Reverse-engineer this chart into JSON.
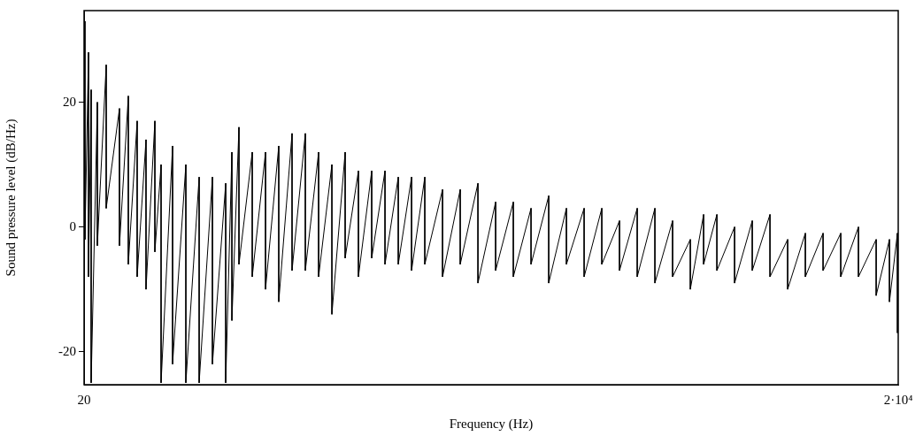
{
  "chart_data": {
    "type": "line",
    "xlabel": "Frequency (Hz)",
    "ylabel": "Sound pressure level (dB/Hz)",
    "xlim": [
      20,
      20000
    ],
    "xticks": [
      20,
      {
        "value": 20000,
        "label": "2·10⁴"
      }
    ],
    "ylim": [
      -25.3,
      34.7
    ],
    "yticks": [
      -20,
      0,
      20
    ],
    "grid": false,
    "legend": false,
    "marker": "none",
    "line_style": "solid",
    "series": [
      {
        "color": "#000000",
        "x": [
          42,
          42,
          129,
          129,
          194,
          194,
          346,
          346,
          563,
          563,
          889,
          889,
          1106,
          1106,
          1323,
          1323,
          1540,
          1540,
          1758,
          1758,
          1910,
          1910,
          2192,
          2192,
          2518,
          2518,
          2844,
          2844,
          3170,
          3170,
          3496,
          3496,
          3648,
          3648,
          3821,
          3821,
          4147,
          4147,
          4473,
          4473,
          4798,
          4798,
          5124,
          5124,
          5450,
          5450,
          5776,
          5776,
          6102,
          6102,
          6427,
          6427,
          6753,
          6753,
          7079,
          7079,
          7405,
          7405,
          7731,
          7731,
          8057,
          8057,
          8382,
          8382,
          8817,
          8817,
          9251,
          9251,
          9686,
          9686,
          10120,
          10120,
          10554,
          10554,
          10989,
          10989,
          11423,
          11423,
          11857,
          11857,
          12292,
          12292,
          12726,
          12726,
          13160,
          13160,
          13595,
          13595,
          14029,
          14029,
          14463,
          14463,
          14898,
          14898,
          15224,
          15224,
          15550,
          15550,
          15984,
          15984,
          16418,
          16418,
          16853,
          16853,
          17287,
          17287,
          17721,
          17721,
          18156,
          18156,
          18590,
          18590,
          19024,
          19024,
          19459,
          19459,
          19785,
          19785,
          19980,
          19980
        ],
        "values": [
          33,
          -2,
          28,
          -8,
          22,
          -25,
          20,
          -3,
          26,
          3,
          19,
          -3,
          21,
          -6,
          17,
          -8,
          14,
          -10,
          17,
          -4,
          10,
          -25,
          13,
          -22,
          10,
          -25,
          8,
          -25,
          8,
          -22,
          7,
          -25,
          12,
          -15,
          16,
          -6,
          12,
          -8,
          12,
          -10,
          13,
          -12,
          15,
          -7,
          15,
          -7,
          12,
          -8,
          10,
          -14,
          12,
          -5,
          9,
          -8,
          9,
          -5,
          9,
          -6,
          8,
          -6,
          8,
          -7,
          8,
          -6,
          6,
          -8,
          6,
          -6,
          7,
          -9,
          4,
          -7,
          4,
          -8,
          3,
          -6,
          5,
          -9,
          3,
          -6,
          3,
          -8,
          3,
          -6,
          1,
          -7,
          3,
          -8,
          3,
          -9,
          1,
          -8,
          -2,
          -10,
          2,
          -6,
          2,
          -7,
          0,
          -9,
          1,
          -7,
          2,
          -8,
          -2,
          -10,
          -1,
          -8,
          -1,
          -7,
          -1,
          -8,
          0,
          -8,
          -2,
          -11,
          -2,
          -12,
          -1,
          -17
        ]
      }
    ]
  }
}
